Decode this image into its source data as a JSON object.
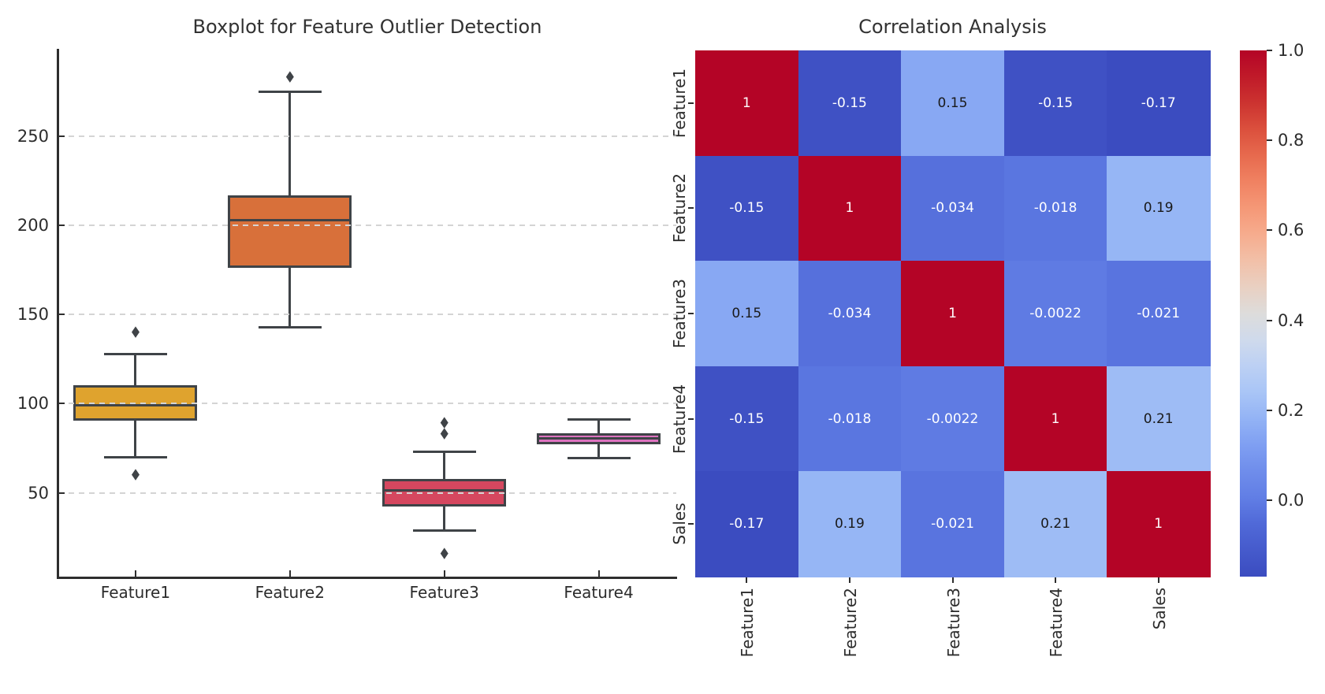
{
  "figure": {
    "background": "#ffffff",
    "text_color": "#2c2c2c",
    "title_color": "#323232"
  },
  "chart_data": [
    {
      "type": "box",
      "title": "Boxplot for Feature Outlier Detection",
      "categories": [
        "Feature1",
        "Feature2",
        "Feature3",
        "Feature4"
      ],
      "ylim": [
        3,
        299
      ],
      "y_ticks": [
        50,
        100,
        150,
        200,
        250
      ],
      "grid": true,
      "grid_color": "#d4d4d4",
      "line_color": "#3f4347",
      "series": [
        {
          "name": "Feature1",
          "color": "#dfa32e",
          "whisker_low": 70,
          "q1": 90.5,
          "median": 99,
          "q3": 110.5,
          "whisker_high": 128,
          "outliers": [
            140,
            60
          ]
        },
        {
          "name": "Feature2",
          "color": "#d8703a",
          "whisker_low": 143,
          "q1": 176,
          "median": 203,
          "q3": 217,
          "whisker_high": 275,
          "outliers": [
            283
          ]
        },
        {
          "name": "Feature3",
          "color": "#d5475f",
          "whisker_low": 29,
          "q1": 42.5,
          "median": 51.5,
          "q3": 58,
          "whisker_high": 73,
          "outliers": [
            89,
            83,
            16
          ]
        },
        {
          "name": "Feature4",
          "color": "#de73c0",
          "whisker_low": 69.5,
          "q1": 77,
          "median": 80.5,
          "q3": 83.5,
          "whisker_high": 91,
          "outliers": []
        }
      ]
    },
    {
      "type": "heatmap",
      "title": "Correlation Analysis",
      "x_labels": [
        "Feature1",
        "Feature2",
        "Feature3",
        "Feature4",
        "Sales"
      ],
      "y_labels": [
        "Feature1",
        "Feature2",
        "Feature3",
        "Feature4",
        "Sales"
      ],
      "values": [
        [
          1,
          -0.15,
          0.15,
          -0.15,
          -0.17
        ],
        [
          -0.15,
          1,
          -0.034,
          -0.018,
          0.19
        ],
        [
          0.15,
          -0.034,
          1,
          -0.0022,
          -0.021
        ],
        [
          -0.15,
          -0.018,
          -0.0022,
          1,
          0.21
        ],
        [
          -0.17,
          0.19,
          -0.021,
          0.21,
          1
        ]
      ],
      "labels_display": [
        [
          "1",
          "-0.15",
          "0.15",
          "-0.15",
          "-0.17"
        ],
        [
          "-0.15",
          "1",
          "-0.034",
          "-0.018",
          "0.19"
        ],
        [
          "0.15",
          "-0.034",
          "1",
          "-0.0022",
          "-0.021"
        ],
        [
          "-0.15",
          "-0.018",
          "-0.0022",
          "1",
          "0.21"
        ],
        [
          "-0.17",
          "0.19",
          "-0.021",
          "0.21",
          "1"
        ]
      ],
      "colormap": "coolwarm",
      "vmin": -0.17,
      "vmax": 1.0,
      "colorbar_ticks": [
        "1.0",
        "0.8",
        "0.6",
        "0.4",
        "0.2",
        "0.0"
      ],
      "colorbar_position": "right",
      "annot_color_dark": "#1a1a1a",
      "annot_color_light": "#ffffff"
    }
  ]
}
